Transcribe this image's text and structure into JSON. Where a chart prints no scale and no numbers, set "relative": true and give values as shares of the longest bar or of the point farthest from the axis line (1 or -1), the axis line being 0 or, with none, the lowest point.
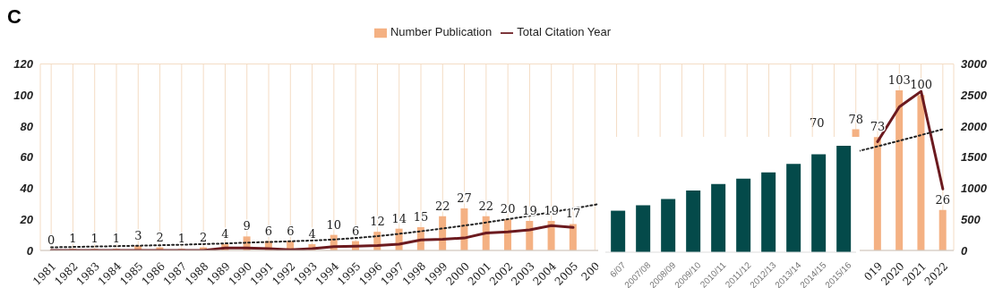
{
  "chart_data": [
    {
      "type": "bar",
      "title": "C",
      "categories": [
        "1981",
        "1982",
        "1983",
        "1984",
        "1985",
        "1986",
        "1987",
        "1988",
        "1989",
        "1990",
        "1991",
        "1992",
        "1993",
        "1994",
        "1995",
        "1996",
        "1997",
        "1998",
        "1999",
        "2000",
        "2001",
        "2002",
        "2003",
        "2004",
        "2005",
        "200",
        null,
        null,
        null,
        null,
        null,
        null,
        null,
        null,
        null,
        null,
        null,
        null,
        "019",
        "2020",
        "2021",
        "2022"
      ],
      "series": [
        {
          "name": "Number Publication",
          "color": "#f4b183",
          "values": [
            0,
            1,
            1,
            1,
            3,
            2,
            1,
            2,
            4,
            9,
            6,
            6,
            4,
            10,
            6,
            12,
            14,
            15,
            22,
            27,
            22,
            20,
            19,
            19,
            17,
            null,
            null,
            null,
            null,
            null,
            null,
            null,
            null,
            null,
            null,
            null,
            null,
            78,
            73,
            103,
            100,
            26
          ],
          "value_labels": [
            "0",
            "1",
            "1",
            "1",
            "3",
            "2",
            "1",
            "2",
            "4",
            "9",
            "6",
            "6",
            "4",
            "10",
            "6",
            "12",
            "14",
            "15",
            "22",
            "27",
            "22",
            "20",
            "19",
            "19",
            "17",
            null,
            null,
            null,
            null,
            null,
            null,
            null,
            null,
            null,
            null,
            null,
            null,
            "78",
            "73",
            "103",
            "100",
            "26"
          ]
        },
        {
          "name": "Total Citation Year",
          "type": "line",
          "axis": "y2",
          "color": "#6b1a1f",
          "values": [
            0,
            0,
            0,
            0,
            0,
            0,
            0,
            0,
            40,
            40,
            30,
            10,
            30,
            60,
            70,
            80,
            100,
            170,
            180,
            200,
            280,
            300,
            330,
            400,
            370,
            null,
            null,
            null,
            null,
            null,
            null,
            null,
            null,
            null,
            null,
            null,
            null,
            null,
            1750,
            2310,
            2560,
            990
          ]
        },
        {
          "type": "line",
          "color": "#222222",
          "line_style": "dotted",
          "values": [
            2,
            null,
            null,
            null,
            null,
            null,
            null,
            null,
            null,
            5,
            null,
            null,
            null,
            null,
            8,
            null,
            null,
            null,
            null,
            16,
            null,
            null,
            null,
            null,
            27,
            null,
            null,
            null,
            null,
            null,
            null,
            null,
            null,
            null,
            null,
            null,
            null,
            null,
            67,
            null,
            null,
            78
          ]
        }
      ],
      "annotations": [
        "70"
      ],
      "ylim": [
        0,
        120
      ],
      "yticks": [
        0,
        20,
        40,
        60,
        80,
        100,
        120
      ],
      "y2lim": [
        0,
        3000
      ],
      "y2ticks": [
        0,
        500,
        1000,
        1500,
        2000,
        2500,
        3000
      ],
      "grid": true,
      "legend": "top",
      "marker": "none"
    },
    {
      "type": "bar",
      "relative": true,
      "categories": [
        "6/07",
        "2007/08",
        "2008/09",
        "2009/10",
        "2010/11",
        "2011/12",
        "2012/13",
        "2013/14",
        "2014/15",
        "2015/16"
      ],
      "values": [
        0.39,
        0.44,
        0.5,
        0.58,
        0.64,
        0.69,
        0.75,
        0.83,
        0.92,
        1
      ],
      "color": "#044a4a"
    }
  ]
}
